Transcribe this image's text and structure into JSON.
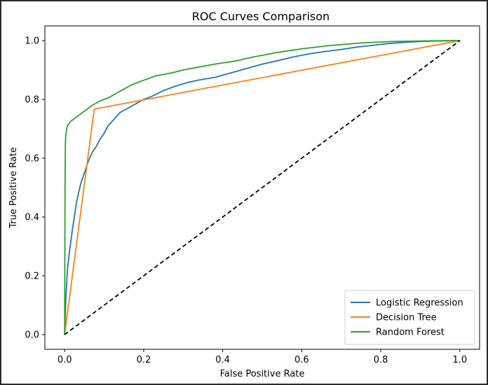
{
  "chart_data": {
    "type": "line",
    "title": "ROC Curves Comparison",
    "xlabel": "False Positive Rate",
    "ylabel": "True Positive Rate",
    "xlim": [
      -0.05,
      1.05
    ],
    "ylim": [
      -0.05,
      1.05
    ],
    "xticks": [
      "0.0",
      "0.2",
      "0.4",
      "0.6",
      "0.8",
      "1.0"
    ],
    "yticks": [
      "0.0",
      "0.2",
      "0.4",
      "0.6",
      "0.8",
      "1.0"
    ],
    "grid": false,
    "legend_position": "lower right",
    "series": [
      {
        "name": "Logistic Regression",
        "color": "#1f77b4",
        "points": [
          [
            0.0,
            0.0
          ],
          [
            0.003,
            0.12
          ],
          [
            0.007,
            0.22
          ],
          [
            0.012,
            0.28
          ],
          [
            0.02,
            0.36
          ],
          [
            0.03,
            0.45
          ],
          [
            0.04,
            0.51
          ],
          [
            0.05,
            0.55
          ],
          [
            0.06,
            0.59
          ],
          [
            0.07,
            0.62
          ],
          [
            0.08,
            0.64
          ],
          [
            0.09,
            0.665
          ],
          [
            0.1,
            0.685
          ],
          [
            0.11,
            0.71
          ],
          [
            0.12,
            0.725
          ],
          [
            0.13,
            0.74
          ],
          [
            0.14,
            0.755
          ],
          [
            0.16,
            0.77
          ],
          [
            0.18,
            0.785
          ],
          [
            0.2,
            0.8
          ],
          [
            0.22,
            0.81
          ],
          [
            0.25,
            0.83
          ],
          [
            0.28,
            0.845
          ],
          [
            0.31,
            0.857
          ],
          [
            0.34,
            0.866
          ],
          [
            0.38,
            0.875
          ],
          [
            0.42,
            0.89
          ],
          [
            0.46,
            0.905
          ],
          [
            0.5,
            0.92
          ],
          [
            0.54,
            0.932
          ],
          [
            0.58,
            0.945
          ],
          [
            0.62,
            0.955
          ],
          [
            0.66,
            0.963
          ],
          [
            0.7,
            0.97
          ],
          [
            0.74,
            0.978
          ],
          [
            0.78,
            0.984
          ],
          [
            0.82,
            0.99
          ],
          [
            0.86,
            0.994
          ],
          [
            0.9,
            0.997
          ],
          [
            0.95,
            0.999
          ],
          [
            1.0,
            1.0
          ]
        ]
      },
      {
        "name": "Decision Tree",
        "color": "#ff7f0e",
        "points": [
          [
            0.0,
            0.0
          ],
          [
            0.075,
            0.767
          ],
          [
            1.0,
            1.0
          ]
        ]
      },
      {
        "name": "Random Forest",
        "color": "#2ca02c",
        "points": [
          [
            0.0,
            0.0
          ],
          [
            0.001,
            0.5
          ],
          [
            0.002,
            0.66
          ],
          [
            0.004,
            0.69
          ],
          [
            0.007,
            0.71
          ],
          [
            0.015,
            0.725
          ],
          [
            0.03,
            0.74
          ],
          [
            0.05,
            0.76
          ],
          [
            0.07,
            0.78
          ],
          [
            0.09,
            0.795
          ],
          [
            0.11,
            0.805
          ],
          [
            0.13,
            0.82
          ],
          [
            0.15,
            0.835
          ],
          [
            0.17,
            0.85
          ],
          [
            0.2,
            0.865
          ],
          [
            0.23,
            0.88
          ],
          [
            0.27,
            0.89
          ],
          [
            0.3,
            0.9
          ],
          [
            0.34,
            0.91
          ],
          [
            0.38,
            0.92
          ],
          [
            0.43,
            0.93
          ],
          [
            0.48,
            0.945
          ],
          [
            0.54,
            0.96
          ],
          [
            0.6,
            0.972
          ],
          [
            0.67,
            0.983
          ],
          [
            0.75,
            0.992
          ],
          [
            0.83,
            0.997
          ],
          [
            0.92,
            0.999
          ],
          [
            1.0,
            1.0
          ]
        ]
      },
      {
        "name": "",
        "color": "#000000",
        "dashed": true,
        "points": [
          [
            0.0,
            0.0
          ],
          [
            1.0,
            1.0
          ]
        ]
      }
    ]
  }
}
